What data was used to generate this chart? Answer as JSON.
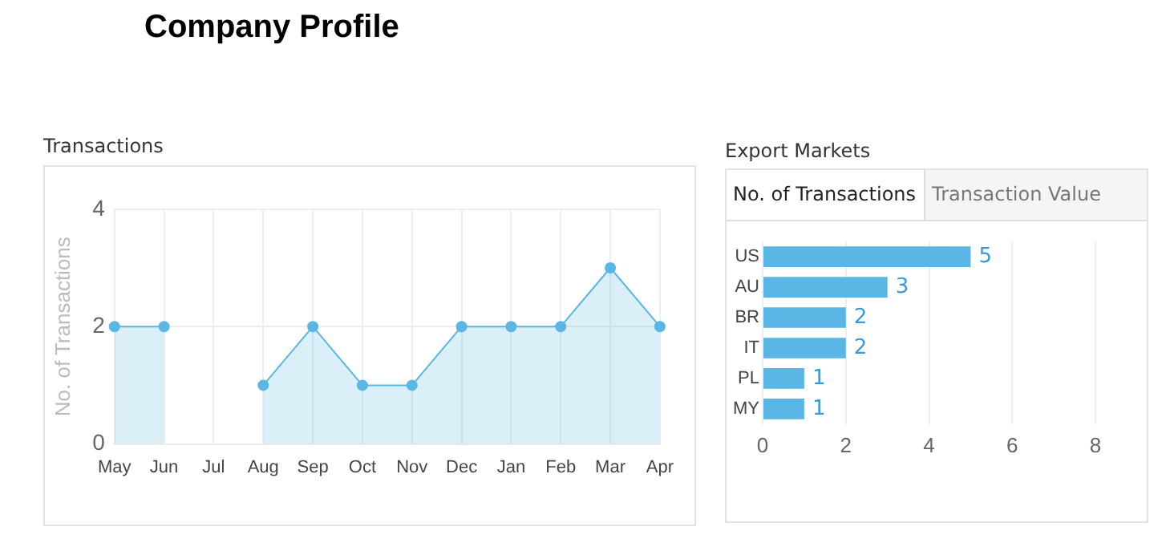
{
  "chart_data": [
    {
      "type": "area",
      "title": "Transactions",
      "ylabel": "No. of Transactions",
      "annotations": [
        "Company Profile"
      ],
      "categories": [
        "May",
        "Jun",
        "Jul",
        "Aug",
        "Sep",
        "Oct",
        "Nov",
        "Dec",
        "Jan",
        "Feb",
        "Mar",
        "Apr"
      ],
      "series": [
        {
          "color": "#5ab6e4",
          "values": [
            2,
            2,
            null,
            1,
            2,
            1,
            1,
            2,
            2,
            2,
            3,
            2
          ]
        }
      ],
      "ylim": [
        0,
        4
      ],
      "yticks": [
        0,
        2,
        4
      ],
      "grid": true,
      "marker": "circle"
    },
    {
      "type": "bar",
      "orientation": "horizontal",
      "title": "Export Markets",
      "annotations": [
        "No. of Transactions",
        "Transaction Value"
      ],
      "categories": [
        "US",
        "AU",
        "BR",
        "IT",
        "PL",
        "MY"
      ],
      "series": [
        {
          "color": "#5ab6e4",
          "values": [
            5,
            3,
            2,
            2,
            1,
            1
          ]
        }
      ],
      "xlim": [
        0,
        8
      ],
      "xticks": [
        0,
        2,
        4,
        6,
        8
      ],
      "grid": "x",
      "data_labels": true
    }
  ]
}
